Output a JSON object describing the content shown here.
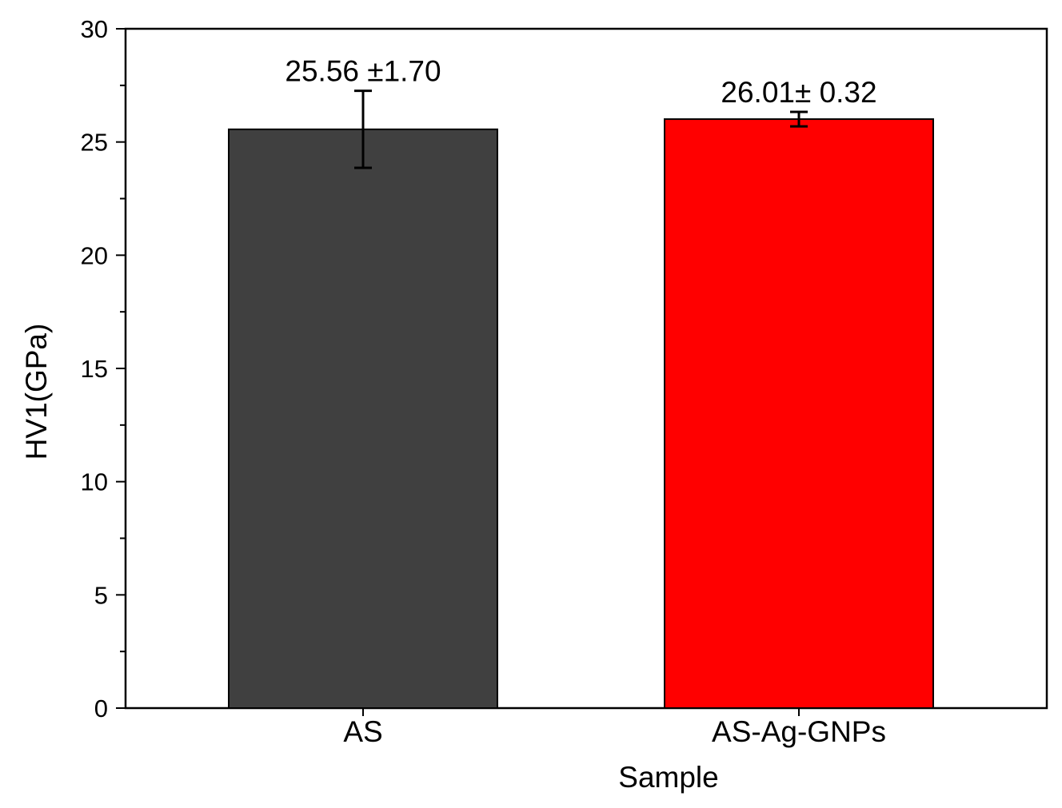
{
  "chart_data": {
    "type": "bar",
    "categories": [
      "AS",
      "AS-Ag-GNPs"
    ],
    "values": [
      25.56,
      26.01
    ],
    "errors": [
      1.7,
      0.32
    ],
    "data_labels": [
      "25.56 ±1.70",
      "26.01± 0.32"
    ],
    "bar_colors": [
      "#404040",
      "#ff0000"
    ],
    "title": "",
    "xlabel": "Sample",
    "ylabel": "HV1(GPa)",
    "ylim": [
      0,
      30
    ],
    "yticks": [
      "0",
      "5",
      "10",
      "15",
      "20",
      "25",
      "30"
    ],
    "grid": false,
    "legend": "none"
  }
}
